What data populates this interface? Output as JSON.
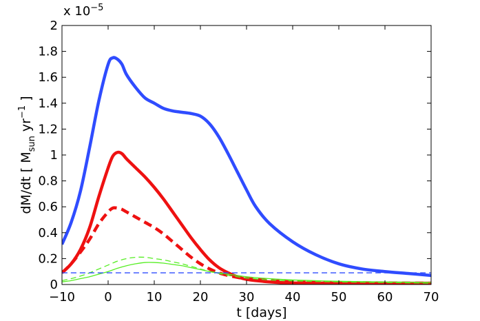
{
  "chart_data": {
    "type": "line",
    "title": "",
    "xlabel": "t [days]",
    "ylabel": {
      "prefix": "dM/dt [ M",
      "sub": "sun",
      "mid": " yr",
      "sup": "−1",
      "suffix": " ]"
    },
    "exponent_label": {
      "base": "x 10",
      "power": "−5"
    },
    "xlim": [
      -10,
      70
    ],
    "ylim": [
      0,
      2
    ],
    "y_scale": "1e-5",
    "xticks": [
      -10,
      0,
      10,
      20,
      30,
      40,
      50,
      60,
      70
    ],
    "xtick_labels": [
      "−10",
      "0",
      "10",
      "20",
      "30",
      "40",
      "50",
      "60",
      "70"
    ],
    "yticks": [
      0,
      0.2,
      0.4,
      0.6,
      0.8,
      1,
      1.2,
      1.4,
      1.6,
      1.8,
      2
    ],
    "ytick_labels": [
      "0",
      "0.2",
      "0.4",
      "0.6",
      "0.8",
      "1",
      "1.2",
      "1.4",
      "1.6",
      "1.8",
      "2"
    ],
    "grid": false,
    "series": [
      {
        "name": "blue thick solid",
        "color": "#2f4cff",
        "style": "solid",
        "weight": "thick",
        "x": [
          -10,
          -8,
          -6,
          -4,
          -2,
          0,
          1,
          2,
          3,
          4,
          6,
          8,
          10,
          12,
          14,
          16,
          18,
          20,
          22,
          24,
          26,
          28,
          30,
          32,
          35,
          40,
          45,
          50,
          55,
          60,
          65,
          70
        ],
        "y": [
          0.31,
          0.48,
          0.72,
          1.06,
          1.42,
          1.7,
          1.75,
          1.74,
          1.7,
          1.62,
          1.52,
          1.44,
          1.4,
          1.36,
          1.34,
          1.33,
          1.32,
          1.3,
          1.24,
          1.14,
          1.01,
          0.87,
          0.73,
          0.6,
          0.47,
          0.33,
          0.23,
          0.16,
          0.12,
          0.1,
          0.085,
          0.07
        ]
      },
      {
        "name": "red thick solid",
        "color": "#ee1111",
        "style": "solid",
        "weight": "thick",
        "x": [
          -10,
          -8,
          -6,
          -4,
          -2,
          0,
          1,
          2,
          3,
          4,
          6,
          8,
          10,
          12,
          14,
          16,
          18,
          20,
          22,
          24,
          26,
          28,
          30,
          35,
          40,
          50,
          60,
          70
        ],
        "y": [
          0.09,
          0.16,
          0.27,
          0.44,
          0.68,
          0.9,
          0.99,
          1.02,
          1.01,
          0.97,
          0.9,
          0.83,
          0.75,
          0.66,
          0.56,
          0.46,
          0.36,
          0.27,
          0.19,
          0.13,
          0.09,
          0.06,
          0.04,
          0.02,
          0.012,
          0.01,
          0.01,
          0.01
        ]
      },
      {
        "name": "red thick dashed",
        "color": "#ee1111",
        "style": "dashed",
        "weight": "thick",
        "x": [
          -10,
          -8,
          -6,
          -4,
          -2,
          0,
          1,
          2,
          3,
          4,
          6,
          8,
          10,
          12,
          14,
          16,
          18,
          20,
          22,
          24,
          26,
          28,
          30,
          35,
          40,
          50,
          60,
          70
        ],
        "y": [
          0.09,
          0.16,
          0.25,
          0.35,
          0.47,
          0.56,
          0.59,
          0.59,
          0.58,
          0.56,
          0.52,
          0.48,
          0.44,
          0.39,
          0.33,
          0.27,
          0.21,
          0.16,
          0.12,
          0.09,
          0.07,
          0.055,
          0.045,
          0.03,
          0.02,
          0.015,
          0.012,
          0.01
        ]
      },
      {
        "name": "green thin dashed",
        "color": "#55ee22",
        "style": "dashed",
        "weight": "thin",
        "x": [
          -10,
          -8,
          -6,
          -4,
          -2,
          0,
          2,
          4,
          6,
          8,
          10,
          12,
          14,
          16,
          18,
          20,
          22,
          24,
          26,
          28,
          30,
          35,
          40,
          50,
          60,
          70
        ],
        "y": [
          0.03,
          0.045,
          0.065,
          0.09,
          0.12,
          0.15,
          0.18,
          0.2,
          0.21,
          0.21,
          0.2,
          0.19,
          0.175,
          0.16,
          0.14,
          0.12,
          0.1,
          0.085,
          0.07,
          0.06,
          0.05,
          0.035,
          0.028,
          0.02,
          0.015,
          0.01
        ]
      },
      {
        "name": "green thin solid",
        "color": "#55ee22",
        "style": "solid",
        "weight": "thin",
        "x": [
          -10,
          -8,
          -6,
          -4,
          -2,
          0,
          2,
          4,
          6,
          8,
          10,
          12,
          14,
          16,
          18,
          20,
          22,
          24,
          26,
          28,
          30,
          35,
          40,
          50,
          60,
          70
        ],
        "y": [
          0.02,
          0.03,
          0.045,
          0.06,
          0.08,
          0.1,
          0.125,
          0.145,
          0.16,
          0.17,
          0.17,
          0.165,
          0.155,
          0.145,
          0.13,
          0.115,
          0.1,
          0.09,
          0.08,
          0.07,
          0.06,
          0.045,
          0.035,
          0.025,
          0.02,
          0.015
        ]
      },
      {
        "name": "blue thin dashed",
        "color": "#2f4cff",
        "style": "dashed",
        "weight": "thin",
        "x": [
          -10,
          70
        ],
        "y": [
          0.09,
          0.09
        ]
      }
    ]
  }
}
